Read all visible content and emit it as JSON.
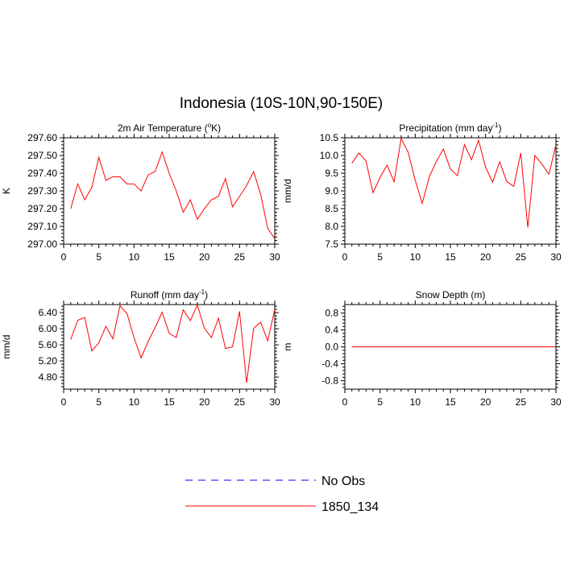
{
  "figure": {
    "title": "Indonesia (10S-10N,90-150E)"
  },
  "legend": {
    "entries": [
      {
        "label": "No Obs",
        "color": "#0000ff",
        "style": "dashed"
      },
      {
        "label": "1850_134",
        "color": "#ff0000",
        "style": "solid"
      }
    ]
  },
  "chart_data": [
    {
      "type": "line",
      "title": "2m Air Temperature (",
      "title_sup": "o",
      "title_suffix": "K)",
      "ylabel": "K",
      "xlabel": "",
      "xlim": [
        0,
        30
      ],
      "ylim": [
        297.0,
        297.6
      ],
      "xticks": [
        0,
        5,
        10,
        15,
        20,
        25,
        30
      ],
      "yticks": [
        297.0,
        297.1,
        297.2,
        297.3,
        297.4,
        297.5,
        297.6
      ],
      "ytick_labels": [
        "297.00",
        "297.10",
        "297.20",
        "297.30",
        "297.40",
        "297.50",
        "297.60"
      ],
      "x": [
        1,
        2,
        3,
        4,
        5,
        6,
        7,
        8,
        9,
        10,
        11,
        12,
        13,
        14,
        15,
        16,
        17,
        18,
        19,
        20,
        21,
        22,
        23,
        24,
        25,
        26,
        27,
        28,
        29,
        30
      ],
      "series": [
        {
          "name": "1850_134",
          "color": "#ff0000",
          "values": [
            297.2,
            297.34,
            297.25,
            297.32,
            297.49,
            297.36,
            297.38,
            297.38,
            297.34,
            297.34,
            297.3,
            297.39,
            297.41,
            297.52,
            297.4,
            297.3,
            297.18,
            297.25,
            297.14,
            297.2,
            297.25,
            297.27,
            297.37,
            297.21,
            297.27,
            297.33,
            297.41,
            297.28,
            297.09,
            297.03
          ]
        }
      ]
    },
    {
      "type": "line",
      "title": "Precipitation (mm day",
      "title_sup": "-1",
      "title_suffix": ")",
      "ylabel": "mm/d",
      "xlabel": "",
      "xlim": [
        0,
        30
      ],
      "ylim": [
        7.5,
        10.5
      ],
      "xticks": [
        0,
        5,
        10,
        15,
        20,
        25,
        30
      ],
      "yticks": [
        7.5,
        8.0,
        8.5,
        9.0,
        9.5,
        10.0,
        10.5
      ],
      "ytick_labels": [
        "7.5",
        "8.0",
        "8.5",
        "9.0",
        "9.5",
        "10.0",
        "10.5"
      ],
      "x": [
        1,
        2,
        3,
        4,
        5,
        6,
        7,
        8,
        9,
        10,
        11,
        12,
        13,
        14,
        15,
        16,
        17,
        18,
        19,
        20,
        21,
        22,
        23,
        24,
        25,
        26,
        27,
        28,
        29,
        30
      ],
      "series": [
        {
          "name": "1850_134",
          "color": "#ff0000",
          "values": [
            9.78,
            10.07,
            9.85,
            8.95,
            9.38,
            9.73,
            9.26,
            10.48,
            10.09,
            9.3,
            8.65,
            9.4,
            9.83,
            10.18,
            9.62,
            9.43,
            10.31,
            9.88,
            10.43,
            9.67,
            9.25,
            9.82,
            9.27,
            9.13,
            10.07,
            7.97,
            10.0,
            9.76,
            9.47,
            10.3
          ]
        }
      ]
    },
    {
      "type": "line",
      "title": "Runoff (mm day",
      "title_sup": "-1",
      "title_suffix": ")",
      "ylabel": "mm/d",
      "xlabel": "",
      "xlim": [
        0,
        30
      ],
      "ylim": [
        4.5,
        6.6
      ],
      "xticks": [
        0,
        5,
        10,
        15,
        20,
        25,
        30
      ],
      "yticks": [
        4.8,
        5.2,
        5.6,
        6.0,
        6.4
      ],
      "ytick_labels": [
        "4.80",
        "5.20",
        "5.60",
        "6.00",
        "6.40"
      ],
      "x": [
        1,
        2,
        3,
        4,
        5,
        6,
        7,
        8,
        9,
        10,
        11,
        12,
        13,
        14,
        15,
        16,
        17,
        18,
        19,
        20,
        21,
        22,
        23,
        24,
        25,
        26,
        27,
        28,
        29,
        30
      ],
      "series": [
        {
          "name": "1850_134",
          "color": "#ff0000",
          "values": [
            5.73,
            6.21,
            6.28,
            5.45,
            5.65,
            6.06,
            5.75,
            6.57,
            6.38,
            5.78,
            5.28,
            5.68,
            6.03,
            6.41,
            5.89,
            5.78,
            6.47,
            6.2,
            6.59,
            6.01,
            5.78,
            6.26,
            5.51,
            5.55,
            6.43,
            4.66,
            6.01,
            6.16,
            5.7,
            6.48
          ]
        }
      ]
    },
    {
      "type": "line",
      "title": "Snow Depth (m)",
      "title_sup": "",
      "title_suffix": "",
      "ylabel": "m",
      "xlabel": "",
      "xlim": [
        0,
        30
      ],
      "ylim": [
        -1.0,
        1.0
      ],
      "xticks": [
        0,
        5,
        10,
        15,
        20,
        25,
        30
      ],
      "yticks": [
        -0.8,
        -0.4,
        0.0,
        0.4,
        0.8
      ],
      "ytick_labels": [
        "-0.8",
        "-0.4",
        "0.0",
        "0.4",
        "0.8"
      ],
      "x": [
        1,
        2,
        3,
        4,
        5,
        6,
        7,
        8,
        9,
        10,
        11,
        12,
        13,
        14,
        15,
        16,
        17,
        18,
        19,
        20,
        21,
        22,
        23,
        24,
        25,
        26,
        27,
        28,
        29,
        30
      ],
      "series": [
        {
          "name": "1850_134",
          "color": "#ff0000",
          "values": [
            0,
            0,
            0,
            0,
            0,
            0,
            0,
            0,
            0,
            0,
            0,
            0,
            0,
            0,
            0,
            0,
            0,
            0,
            0,
            0,
            0,
            0,
            0,
            0,
            0,
            0,
            0,
            0,
            0,
            0
          ]
        }
      ]
    }
  ]
}
